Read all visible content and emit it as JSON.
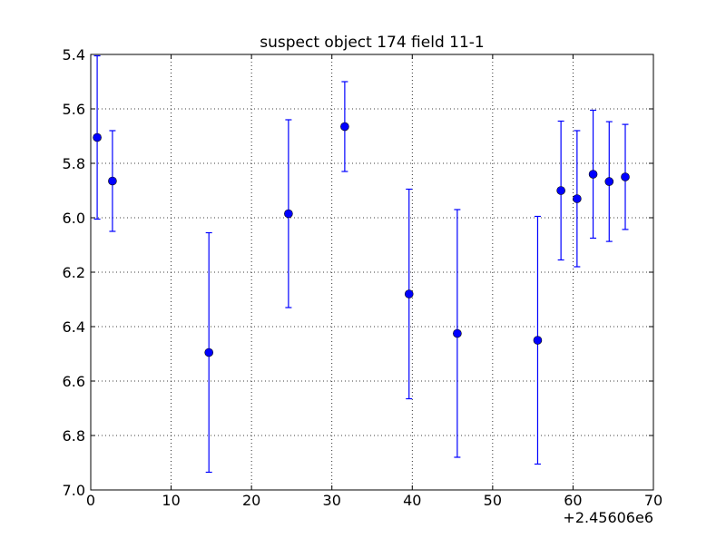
{
  "chart_data": {
    "type": "scatter",
    "title": "suspect object 174 field 11-1",
    "xlabel": "",
    "ylabel": "",
    "x_offset_label": "+2.45606e6",
    "xlim": [
      0,
      70
    ],
    "ylim": [
      7.0,
      5.4
    ],
    "y_inverted": true,
    "grid": true,
    "marker_color": "#0000ff",
    "xticks": [
      0,
      10,
      20,
      30,
      40,
      50,
      60,
      70
    ],
    "xtick_labels": [
      "0",
      "10",
      "20",
      "30",
      "40",
      "50",
      "60",
      "70"
    ],
    "yticks": [
      5.4,
      5.6,
      5.8,
      6.0,
      6.2,
      6.4,
      6.6,
      6.8,
      7.0
    ],
    "ytick_labels": [
      "5.4",
      "5.6",
      "5.8",
      "6.0",
      "6.2",
      "6.4",
      "6.6",
      "6.8",
      "7.0"
    ],
    "series": [
      {
        "marker": "circle",
        "points": [
          {
            "x": 0.8,
            "y": 5.705,
            "err": 0.3
          },
          {
            "x": 2.7,
            "y": 5.865,
            "err": 0.185
          },
          {
            "x": 14.7,
            "y": 6.495,
            "err": 0.44
          },
          {
            "x": 24.6,
            "y": 5.985,
            "err": 0.345
          },
          {
            "x": 31.6,
            "y": 5.665,
            "err": 0.165
          },
          {
            "x": 39.6,
            "y": 6.28,
            "err": 0.385
          },
          {
            "x": 45.6,
            "y": 6.425,
            "err": 0.455
          },
          {
            "x": 55.6,
            "y": 6.45,
            "err": 0.455
          },
          {
            "x": 58.5,
            "y": 5.9,
            "err": 0.255
          },
          {
            "x": 60.5,
            "y": 5.93,
            "err": 0.25
          },
          {
            "x": 62.5,
            "y": 5.84,
            "err": 0.235
          },
          {
            "x": 64.5,
            "y": 5.867,
            "err": 0.22
          },
          {
            "x": 66.5,
            "y": 5.85,
            "err": 0.193
          }
        ]
      }
    ]
  }
}
